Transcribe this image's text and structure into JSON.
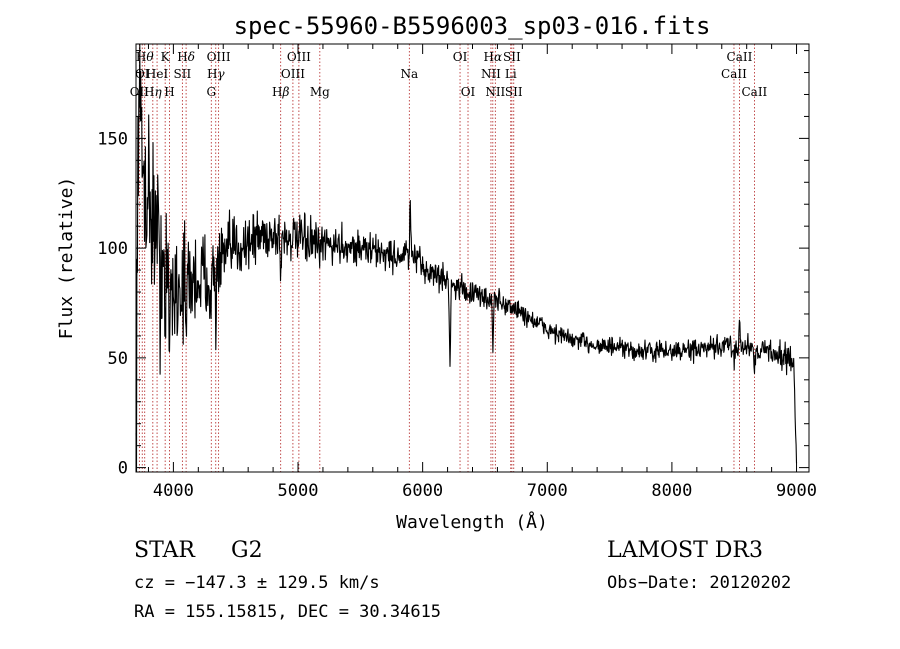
{
  "chart_data": {
    "type": "line",
    "title": "spec-55960-B5596003_sp03-016.fits",
    "xlabel": "Wavelength (Å)",
    "ylabel": "Flux (relative)",
    "xlim": [
      3700,
      9100
    ],
    "ylim": [
      -2,
      193
    ],
    "xticks": [
      4000,
      5000,
      6000,
      7000,
      8000,
      9000
    ],
    "xtick_labels": [
      "4000",
      "5000",
      "6000",
      "7000",
      "8000",
      "9000"
    ],
    "yticks": [
      0,
      50,
      100,
      150
    ],
    "ytick_labels": [
      "0",
      "50",
      "100",
      "150"
    ],
    "colors": {
      "spectrum": "#000000",
      "lines": "#b22222"
    },
    "lines": [
      {
        "wave": 3727,
        "parts": [
          {
            "t": "OII"
          }
        ],
        "row": 2
      },
      {
        "wave": 3750,
        "parts": [
          {
            "t": "OI"
          }
        ],
        "row": 1
      },
      {
        "wave": 3770,
        "parts": [
          {
            "t": "H"
          },
          {
            "t": "θ",
            "g": true
          }
        ],
        "row": 0
      },
      {
        "wave": 3835,
        "parts": [
          {
            "t": "H"
          },
          {
            "t": "η",
            "g": true
          }
        ],
        "row": 2
      },
      {
        "wave": 3869,
        "parts": [
          {
            "t": "HeI"
          }
        ],
        "row": 1
      },
      {
        "wave": 3934,
        "parts": [
          {
            "t": "K"
          }
        ],
        "row": 0
      },
      {
        "wave": 3969,
        "parts": [
          {
            "t": "H"
          }
        ],
        "row": 2
      },
      {
        "wave": 4072,
        "parts": [
          {
            "t": "SII"
          }
        ],
        "row": 1
      },
      {
        "wave": 4102,
        "parts": [
          {
            "t": "H"
          },
          {
            "t": "δ",
            "g": true
          }
        ],
        "row": 0
      },
      {
        "wave": 4304,
        "parts": [
          {
            "t": "G"
          }
        ],
        "row": 2
      },
      {
        "wave": 4340,
        "parts": [
          {
            "t": "H"
          },
          {
            "t": "γ",
            "g": true
          }
        ],
        "row": 1
      },
      {
        "wave": 4363,
        "parts": [
          {
            "t": "OIII"
          }
        ],
        "row": 0
      },
      {
        "wave": 4861,
        "parts": [
          {
            "t": "H"
          },
          {
            "t": "β",
            "g": true
          }
        ],
        "row": 2
      },
      {
        "wave": 4959,
        "parts": [
          {
            "t": "OIII"
          }
        ],
        "row": 1
      },
      {
        "wave": 5007,
        "parts": [
          {
            "t": "OIII"
          }
        ],
        "row": 0
      },
      {
        "wave": 5175,
        "parts": [
          {
            "t": "Mg"
          }
        ],
        "row": 2
      },
      {
        "wave": 5893,
        "parts": [
          {
            "t": "Na"
          }
        ],
        "row": 1
      },
      {
        "wave": 6300,
        "parts": [
          {
            "t": "OI"
          }
        ],
        "row": 0
      },
      {
        "wave": 6364,
        "parts": [
          {
            "t": "OI"
          }
        ],
        "row": 2
      },
      {
        "wave": 6548,
        "parts": [
          {
            "t": "NII"
          }
        ],
        "row": 1
      },
      {
        "wave": 6563,
        "parts": [
          {
            "t": "H"
          },
          {
            "t": "α",
            "g": true
          }
        ],
        "row": 0
      },
      {
        "wave": 6583,
        "parts": [
          {
            "t": "NII"
          }
        ],
        "row": 2
      },
      {
        "wave": 6707,
        "parts": [
          {
            "t": "Li"
          }
        ],
        "row": 1
      },
      {
        "wave": 6716,
        "parts": [
          {
            "t": "SII"
          }
        ],
        "row": 0
      },
      {
        "wave": 6731,
        "parts": [
          {
            "t": "SII"
          }
        ],
        "row": 2
      },
      {
        "wave": 8498,
        "parts": [
          {
            "t": "CaII"
          }
        ],
        "row": 1
      },
      {
        "wave": 8542,
        "parts": [
          {
            "t": "CaII"
          }
        ],
        "row": 0
      },
      {
        "wave": 8662,
        "parts": [
          {
            "t": "CaII"
          }
        ],
        "row": 2
      }
    ],
    "continuum": [
      [
        3700,
        0
      ],
      [
        3715,
        125
      ],
      [
        3730,
        140
      ],
      [
        3760,
        135
      ],
      [
        3800,
        125
      ],
      [
        3850,
        112
      ],
      [
        3900,
        100
      ],
      [
        3950,
        88
      ],
      [
        4000,
        82
      ],
      [
        4100,
        84
      ],
      [
        4200,
        86
      ],
      [
        4300,
        88
      ],
      [
        4400,
        95
      ],
      [
        4500,
        101
      ],
      [
        4600,
        103
      ],
      [
        4700,
        106
      ],
      [
        4800,
        106
      ],
      [
        5000,
        104
      ],
      [
        5200,
        102
      ],
      [
        5400,
        101
      ],
      [
        5600,
        99
      ],
      [
        5800,
        96
      ],
      [
        5900,
        98
      ],
      [
        6000,
        91
      ],
      [
        6200,
        85
      ],
      [
        6400,
        79
      ],
      [
        6600,
        76
      ],
      [
        6750,
        72
      ],
      [
        7000,
        63
      ],
      [
        7200,
        58
      ],
      [
        7500,
        55
      ],
      [
        7700,
        53
      ],
      [
        8000,
        53
      ],
      [
        8300,
        54
      ],
      [
        8500,
        56
      ],
      [
        8700,
        54
      ],
      [
        8900,
        51
      ],
      [
        8980,
        46
      ],
      [
        9000,
        2
      ]
    ],
    "features": [
      {
        "wave": 3722,
        "depth": -45
      },
      {
        "wave": 3733,
        "depth": -25
      },
      {
        "wave": 3892,
        "depth": 28
      },
      {
        "wave": 3934,
        "depth": 35
      },
      {
        "wave": 3969,
        "depth": 30
      },
      {
        "wave": 4102,
        "depth": 22
      },
      {
        "wave": 4304,
        "depth": 18
      },
      {
        "wave": 4340,
        "depth": 22
      },
      {
        "wave": 4861,
        "depth": 18
      },
      {
        "wave": 5175,
        "depth": 12
      },
      {
        "wave": 5893,
        "depth": 10
      },
      {
        "wave": 5900,
        "depth": -28
      },
      {
        "wave": 6220,
        "depth": 40
      },
      {
        "wave": 6563,
        "depth": 22
      },
      {
        "wave": 8498,
        "depth": 8
      },
      {
        "wave": 8542,
        "depth": -10
      },
      {
        "wave": 8662,
        "depth": 8
      }
    ],
    "noise": [
      [
        3700,
        38
      ],
      [
        3900,
        28
      ],
      [
        4100,
        22
      ],
      [
        4400,
        14
      ],
      [
        4800,
        10
      ],
      [
        5500,
        7
      ],
      [
        6000,
        6
      ],
      [
        6500,
        5
      ],
      [
        7000,
        4
      ],
      [
        8000,
        4
      ],
      [
        8600,
        5
      ],
      [
        9000,
        6
      ]
    ],
    "n_points": 1400
  },
  "info": {
    "object_class": "STAR",
    "subclass": "G2",
    "survey": "LAMOST DR3",
    "cz": "cz = −147.3 ± 129.5 km/s",
    "obs_date": "Obs−Date: 20120202",
    "radec": "RA = 155.15815, DEC =  30.34615"
  }
}
